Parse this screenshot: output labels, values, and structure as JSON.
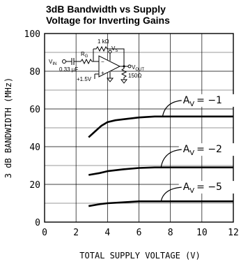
{
  "chart_data": {
    "type": "line",
    "title_lines": [
      "3dB Bandwidth vs Supply",
      "Voltage for Inverting Gains"
    ],
    "xlabel": "TOTAL SUPPLY VOLTAGE (V)",
    "ylabel": "3 dB BANDWIDTH (MHz)",
    "xlim": [
      0,
      12
    ],
    "ylim": [
      0,
      100
    ],
    "xticks": [
      0,
      2,
      4,
      6,
      8,
      10,
      12
    ],
    "yticks": [
      0,
      20,
      40,
      60,
      80,
      100
    ],
    "grid": true,
    "series": [
      {
        "name": "",
        "label_prefix": "A",
        "label_sub": "V",
        "label_value": "= −1",
        "x": [
          2.8,
          3.2,
          3.6,
          4.0,
          4.5,
          5.0,
          6.0,
          7.0,
          8.0,
          10.0,
          12.0
        ],
        "y": [
          45,
          48,
          51,
          53,
          54,
          54.5,
          55.5,
          56,
          56,
          56,
          56
        ]
      },
      {
        "name": "",
        "label_prefix": "A",
        "label_sub": "V",
        "label_value": "= −2",
        "x": [
          2.8,
          3.5,
          4.0,
          5.0,
          6.0,
          7.0,
          8.0,
          10.0,
          12.0
        ],
        "y": [
          25,
          26,
          27,
          28,
          28.7,
          29,
          29,
          29,
          29
        ]
      },
      {
        "name": "",
        "label_prefix": "A",
        "label_sub": "V",
        "label_value": "= −5",
        "x": [
          2.8,
          3.5,
          4.0,
          5.0,
          6.0,
          7.0,
          8.0,
          10.0,
          12.0
        ],
        "y": [
          8.5,
          9.5,
          10,
          10.5,
          11,
          11,
          11,
          11,
          11
        ]
      }
    ]
  },
  "inset": {
    "vin": "V",
    "vin_sub": "IN",
    "cap": "0.33 µF",
    "rg": "R",
    "rg_sub": "G",
    "rf": "1 kΩ",
    "vs": "V",
    "vs_sub": "S",
    "bias": "+1.5V",
    "vout": "V",
    "vout_sub": "OUT",
    "rl": "150Ω"
  }
}
